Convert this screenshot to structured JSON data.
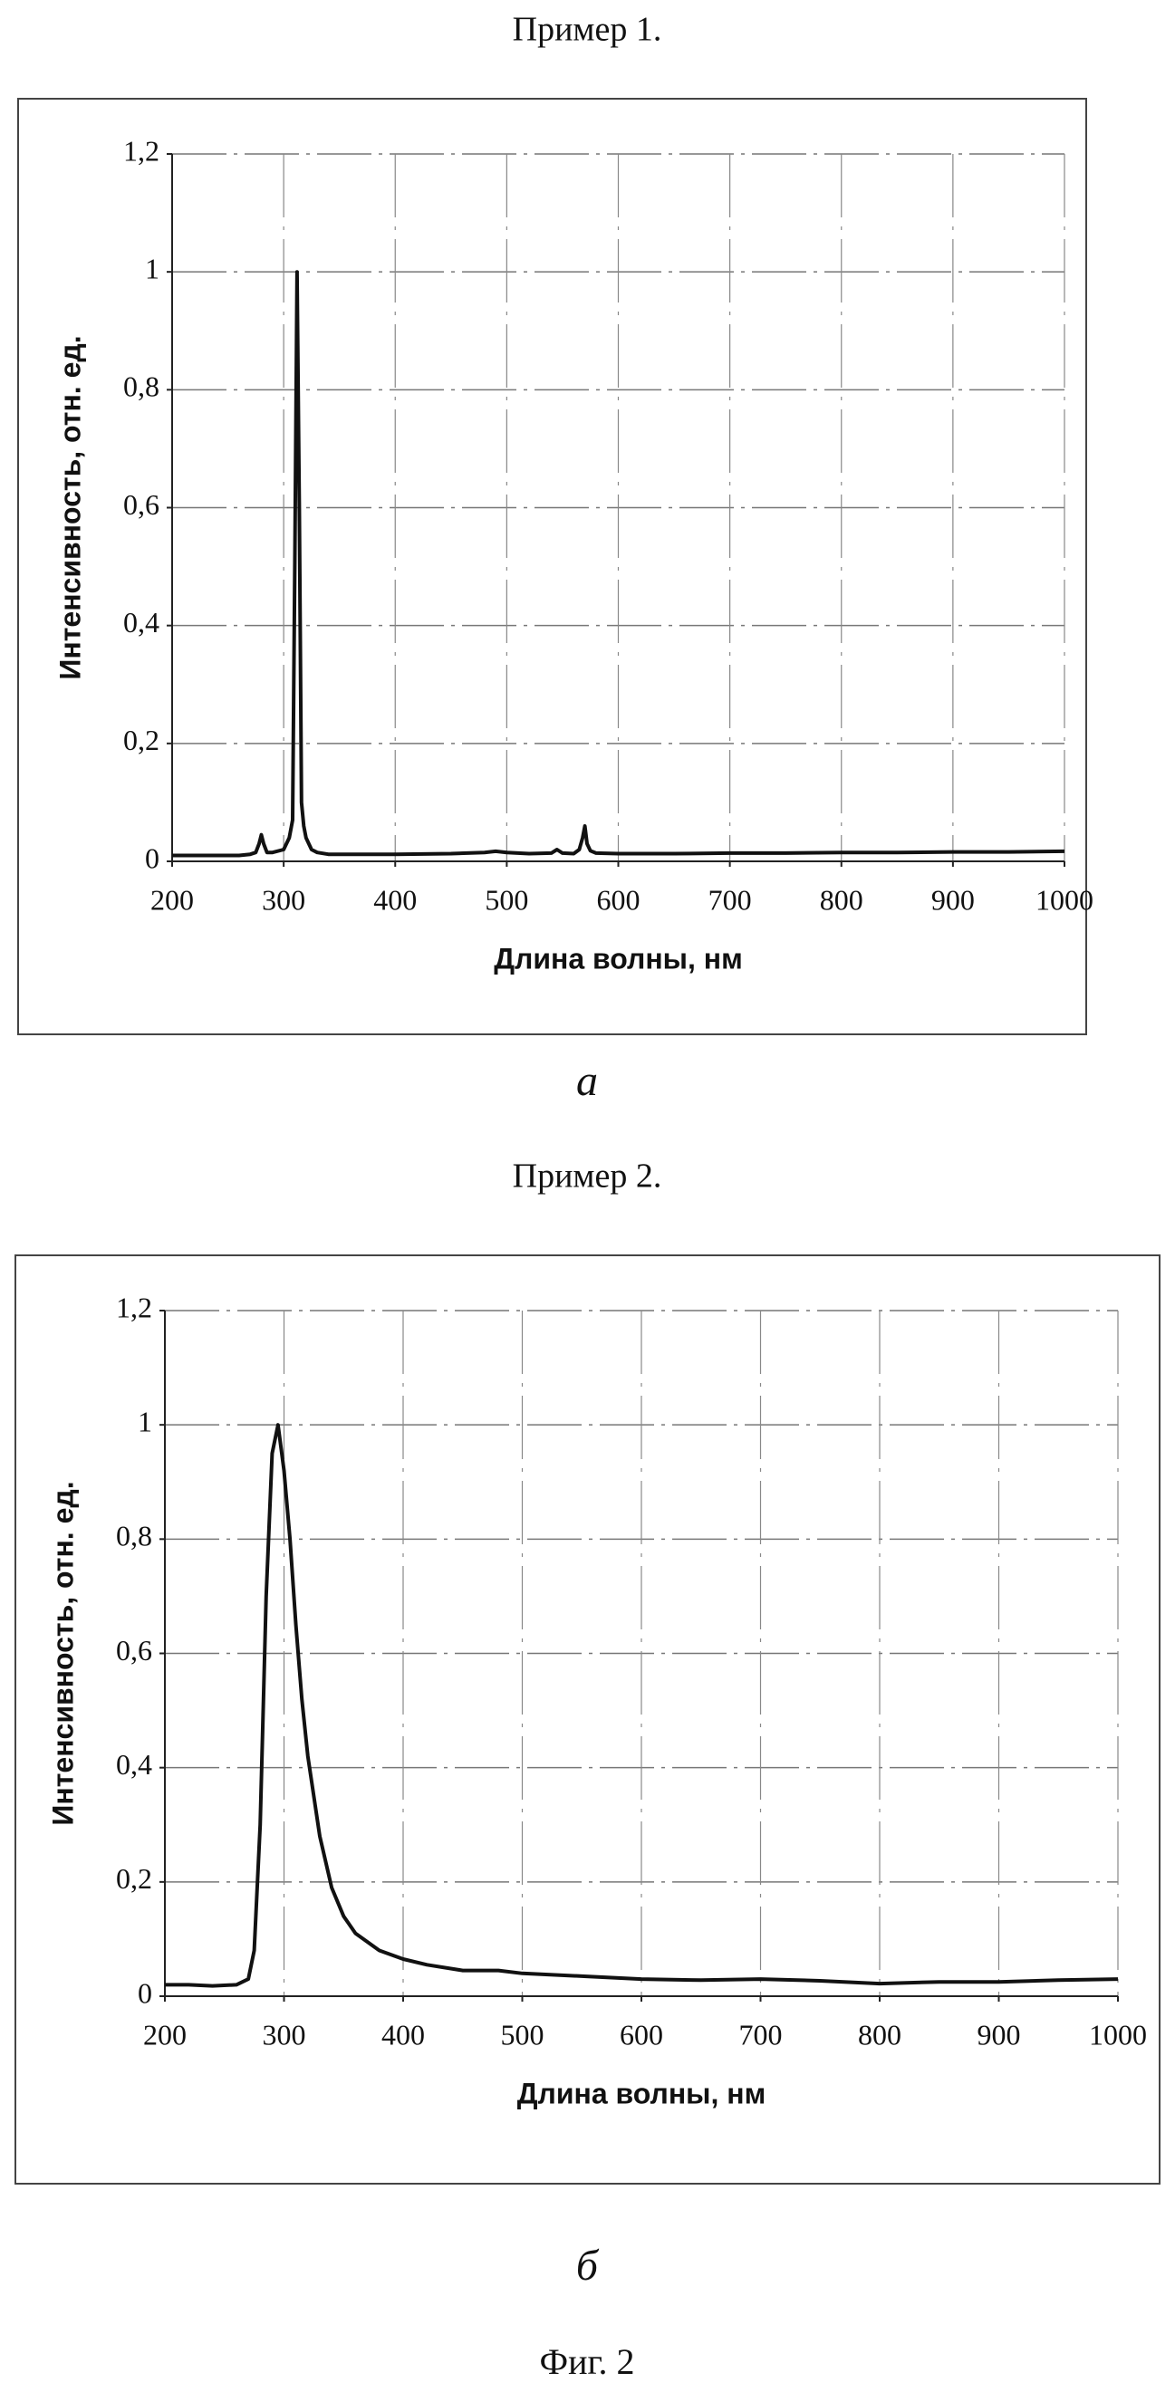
{
  "chart_data": [
    {
      "type": "line",
      "title": "Пример 1.",
      "label": "а",
      "xlabel": "Длина волны, нм",
      "ylabel": "Интенсивность, отн. ед.",
      "x": [
        200,
        220,
        240,
        260,
        270,
        275,
        278,
        280,
        282,
        285,
        290,
        300,
        305,
        308,
        310,
        312,
        314,
        316,
        318,
        320,
        325,
        330,
        340,
        360,
        400,
        450,
        480,
        490,
        500,
        520,
        540,
        545,
        550,
        560,
        565,
        568,
        570,
        572,
        575,
        580,
        600,
        650,
        700,
        750,
        800,
        850,
        900,
        950,
        1000
      ],
      "series": [
        {
          "color": "#111111",
          "values": [
            0.01,
            0.01,
            0.01,
            0.01,
            0.012,
            0.015,
            0.03,
            0.045,
            0.03,
            0.015,
            0.015,
            0.02,
            0.04,
            0.07,
            0.5,
            1.0,
            0.6,
            0.1,
            0.06,
            0.04,
            0.02,
            0.015,
            0.012,
            0.012,
            0.012,
            0.013,
            0.015,
            0.017,
            0.015,
            0.013,
            0.014,
            0.02,
            0.014,
            0.013,
            0.02,
            0.04,
            0.06,
            0.03,
            0.018,
            0.014,
            0.013,
            0.013,
            0.014,
            0.014,
            0.015,
            0.015,
            0.016,
            0.016,
            0.017
          ]
        }
      ],
      "xlim": [
        200,
        1000
      ],
      "xticks": [
        200,
        300,
        400,
        500,
        600,
        700,
        800,
        900,
        1000
      ],
      "ylim": [
        0,
        1.2
      ],
      "yticks": [
        0,
        {
          "value": 0.2,
          "label": "0,2"
        },
        {
          "value": 0.4,
          "label": "0,4"
        },
        {
          "value": 0.6,
          "label": "0,6"
        },
        {
          "value": 0.8,
          "label": "0,8"
        },
        1,
        {
          "value": 1.2,
          "label": "1,2"
        }
      ],
      "grid": true
    },
    {
      "type": "line",
      "title": "Пример 2.",
      "label": "б",
      "xlabel": "Длина волны, нм",
      "ylabel": "Интенсивность, отн. ед.",
      "x": [
        200,
        220,
        240,
        260,
        270,
        275,
        280,
        285,
        290,
        295,
        300,
        305,
        310,
        315,
        320,
        330,
        340,
        350,
        360,
        380,
        400,
        420,
        450,
        480,
        500,
        550,
        600,
        650,
        700,
        750,
        800,
        850,
        900,
        950,
        1000
      ],
      "series": [
        {
          "color": "#111111",
          "values": [
            0.02,
            0.02,
            0.018,
            0.02,
            0.03,
            0.08,
            0.3,
            0.7,
            0.95,
            1.0,
            0.92,
            0.8,
            0.65,
            0.52,
            0.42,
            0.28,
            0.19,
            0.14,
            0.11,
            0.08,
            0.065,
            0.055,
            0.045,
            0.045,
            0.04,
            0.035,
            0.03,
            0.028,
            0.03,
            0.027,
            0.022,
            0.025,
            0.025,
            0.028,
            0.03
          ]
        }
      ],
      "xlim": [
        200,
        1000
      ],
      "xticks": [
        200,
        300,
        400,
        500,
        600,
        700,
        800,
        900,
        1000
      ],
      "ylim": [
        0,
        1.2
      ],
      "yticks": [
        0,
        {
          "value": 0.2,
          "label": "0,2"
        },
        {
          "value": 0.4,
          "label": "0,4"
        },
        {
          "value": 0.6,
          "label": "0,6"
        },
        {
          "value": 0.8,
          "label": "0,8"
        },
        1,
        {
          "value": 1.2,
          "label": "1,2"
        }
      ],
      "grid": true
    }
  ],
  "figure_caption": "Фиг. 2"
}
